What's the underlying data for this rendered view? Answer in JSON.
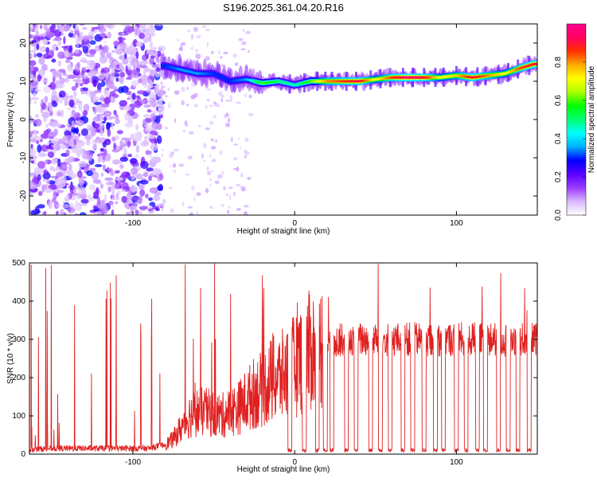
{
  "title": "S196.2025.361.04.20.R16",
  "chart_data": [
    {
      "type": "heatmap",
      "xlabel": "Height of straight line (km)",
      "ylabel": "Frequency (Hz)",
      "xlim": [
        -164,
        150
      ],
      "ylim": [
        -25,
        25
      ],
      "xticks": [
        -100,
        0,
        100
      ],
      "xtick_labels": [
        "-100",
        "0",
        "100"
      ],
      "yticks": [
        20,
        10,
        0,
        -10,
        -20
      ],
      "ytick_labels": [
        "20",
        "10",
        "0",
        "-10",
        "-20"
      ],
      "colorbar": {
        "label": "Normalized spectral amplitude",
        "range": [
          0,
          1
        ],
        "ticks": [
          0,
          0.2,
          0.4,
          0.6,
          0.8
        ],
        "tick_labels": [
          "0.0",
          "0.2",
          "0.4",
          "0.6",
          "0.8"
        ],
        "colormap": [
          "#ffffff",
          "#d8b8ff",
          "#9a3cff",
          "#5a00ff",
          "#0000ff",
          "#00b0ff",
          "#00ffff",
          "#00ff70",
          "#00ff00",
          "#aaff00",
          "#ffff00",
          "#ffaa00",
          "#ff3000",
          "#ff0060",
          "#ff0090"
        ]
      },
      "ridge": {
        "x": [
          -80,
          -70,
          -60,
          -50,
          -40,
          -30,
          -20,
          -10,
          0,
          10,
          20,
          30,
          40,
          50,
          60,
          70,
          80,
          90,
          100,
          110,
          120,
          130,
          140,
          148
        ],
        "frequency": [
          14,
          13,
          12,
          12,
          10,
          10.5,
          9.5,
          10,
          9,
          10,
          10,
          10,
          10,
          10.5,
          11,
          11,
          11,
          11,
          11.5,
          11,
          11.5,
          12,
          13.5,
          14.5
        ],
        "amplitude": [
          0.3,
          0.35,
          0.35,
          0.3,
          0.3,
          0.35,
          0.6,
          0.5,
          0.45,
          0.6,
          0.8,
          0.85,
          0.9,
          0.7,
          0.85,
          0.95,
          0.9,
          0.7,
          0.75,
          0.9,
          0.8,
          0.7,
          0.85,
          0.9
        ]
      }
    },
    {
      "type": "line",
      "xlabel": "Height of straight line (km)",
      "ylabel": "SNR (10 * v/v)",
      "xlim": [
        -164,
        150
      ],
      "ylim": [
        0,
        500
      ],
      "xticks": [
        -100,
        0,
        100
      ],
      "xtick_labels": [
        "-100",
        "0",
        "100"
      ],
      "yticks": [
        0,
        100,
        200,
        300,
        400,
        500
      ],
      "ytick_labels": [
        "0",
        "100",
        "200",
        "300",
        "400",
        "500"
      ],
      "line_color": "#e02020",
      "series": [
        {
          "name": "SNR",
          "x": [
            -164,
            -150,
            -130,
            -110,
            -90,
            -80,
            -75,
            -70,
            -65,
            -60,
            -55,
            -50,
            -45,
            -40,
            -35,
            -30,
            -25,
            -20,
            -15,
            -10,
            -5,
            0,
            5,
            10,
            15,
            20,
            25,
            30,
            35,
            40,
            50,
            60,
            70,
            80,
            90,
            100,
            110,
            120,
            130,
            140,
            150
          ],
          "values": [
            12,
            15,
            15,
            15,
            15,
            25,
            40,
            70,
            100,
            110,
            110,
            105,
            100,
            110,
            120,
            140,
            160,
            170,
            190,
            200,
            210,
            230,
            260,
            270,
            280,
            290,
            295,
            300,
            300,
            300,
            300,
            300,
            300,
            300,
            300,
            300,
            300,
            300,
            300,
            300,
            300
          ]
        }
      ],
      "dropouts_x": [
        -3,
        6,
        14,
        19,
        23,
        32,
        38,
        47,
        53,
        59,
        67,
        73,
        80,
        87,
        92,
        100,
        106,
        113,
        118,
        126,
        132,
        138,
        145
      ],
      "dropout_level": 5,
      "spike_max": 500
    }
  ]
}
